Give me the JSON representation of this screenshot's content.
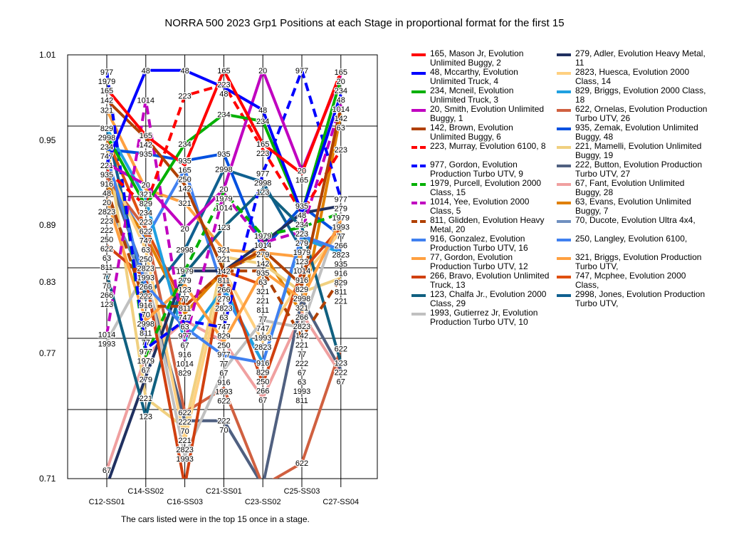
{
  "title": "NORRA 500 2023 Grp1  Positions at each Stage in proportional format for the first 15",
  "footer": "The cars listed were in the top 15 once in a stage.",
  "chart_data": {
    "type": "line",
    "title": "NORRA 500 2023 Grp1  Positions at each Stage in proportional format for the first 15",
    "xlabel": "",
    "ylabel": "",
    "ylim": [
      0.71,
      1.01
    ],
    "yticks": [
      "1.01",
      "0.95",
      "0.89",
      "0.83",
      "0.77",
      "0.71"
    ],
    "categories": [
      "C12-SS01",
      "C14-SS02",
      "C16-SS03",
      "C21-SS01",
      "C23-SS02",
      "C25-SS03",
      "C27-SS04"
    ],
    "grid": true,
    "legend_placement": "right",
    "series": [
      {
        "car": "165",
        "name": "165, Mason Jr, Evolution Unlimited Buggy, 2",
        "color": "#ff0000",
        "dash": false,
        "values": [
          0.986,
          0.953,
          0.932,
          0.999,
          0.947,
          0.926,
          0.998
        ]
      },
      {
        "car": "48",
        "name": "48, Mccarthy, Evolution Unlimited Truck, 4",
        "color": "#0000ff",
        "dash": false,
        "values": [
          0.933,
          0.999,
          0.999,
          0.987,
          0.971,
          0.898,
          0.982
        ]
      },
      {
        "car": "234",
        "name": "234, Mcneil, Evolution Unlimited Truck, 3",
        "color": "#00b000",
        "dash": false,
        "values": [
          0.953,
          0.903,
          0.947,
          0.968,
          0.963,
          0.898,
          0.993
        ]
      },
      {
        "car": "20",
        "name": "20, Smith, Evolution Unlimited Buggy, 1",
        "color": "#c000c0",
        "dash": false,
        "values": [
          0.933,
          0.918,
          0.887,
          0.915,
          0.999,
          0.928,
          0.996
        ]
      },
      {
        "car": "142",
        "name": "142, Brown, Evolution Unlimited Buggy, 6",
        "color": "#b04000",
        "dash": false,
        "values": [
          0.978,
          0.951,
          0.918,
          0.857,
          0.872,
          0.847,
          0.973
        ]
      },
      {
        "car": "223",
        "name": "223, Murray, Evolution 6100, 8",
        "color": "#ff0000",
        "dash": true,
        "values": [
          0.928,
          0.903,
          0.981,
          0.989,
          0.943,
          0.898,
          0.943
        ]
      },
      {
        "car": "977",
        "name": "977, Gordon, Evolution Production Turbo UTV, 9",
        "color": "#0000ff",
        "dash": true,
        "values": [
          0.998,
          0.802,
          0.822,
          0.817,
          0.926,
          0.999,
          0.908
        ]
      },
      {
        "car": "1979",
        "name": "1979, Purcell, Evolution 2000 Class, 15",
        "color": "#00b000",
        "dash": true,
        "values": [
          0.998,
          0.797,
          0.857,
          0.913,
          0.882,
          0.888,
          0.898
        ]
      },
      {
        "car": "1014",
        "name": "1014, Yee, Evolution 2000 Class, 5",
        "color": "#c000c0",
        "dash": true,
        "values": [
          0.812,
          0.978,
          0.807,
          0.912,
          0.877,
          0.885,
          0.975
        ]
      },
      {
        "car": "811",
        "name": "811, Glidden, Evolution Heavy Metal, 20",
        "color": "#b04000",
        "dash": true,
        "values": [
          0.915,
          0.832,
          0.832,
          0.857,
          0.857,
          0.81,
          0.852
        ]
      },
      {
        "car": "916",
        "name": "916, Gonzalez, Evolution Production Turbo UTV, 16",
        "color": "#4080f0",
        "dash": false,
        "values": [
          0.938,
          0.847,
          0.817,
          0.797,
          0.792,
          0.882,
          0.872
        ]
      },
      {
        "car": "77",
        "name": "77, Gordon, Evolution Production Turbo UTV, 12",
        "color": "#ffa040",
        "dash": false,
        "values": [
          0.908,
          0.822,
          0.847,
          0.807,
          0.857,
          0.837,
          0.893
        ]
      },
      {
        "car": "266",
        "name": "266, Bravo, Evolution Unlimited Truck, 13",
        "color": "#d04010",
        "dash": false,
        "values": [
          0.875,
          0.852,
          0.705,
          0.857,
          0.777,
          0.857,
          0.888
        ]
      },
      {
        "car": "123",
        "name": "123, Chalfa Jr., Evolution 2000 Class, 29",
        "color": "#106080",
        "dash": false,
        "values": [
          0.855,
          0.754,
          0.855,
          0.888,
          0.915,
          0.888,
          0.792
        ]
      },
      {
        "car": "1993",
        "name": "1993, Gutierrez Jr, Evolution Production Turbo UTV, 10",
        "color": "#c0c0c0",
        "dash": false,
        "values": [
          0.807,
          0.857,
          0.726,
          0.787,
          0.822,
          0.817,
          0.898
        ]
      },
      {
        "car": "279",
        "name": "279, Adler, Evolution Heavy Metal, 11",
        "color": "#203060",
        "dash": false,
        "values": [
          0.705,
          0.782,
          0.857,
          0.857,
          0.877,
          0.898,
          0.903
        ]
      },
      {
        "car": "2823",
        "name": "2823, Huesca, Evolution 2000 Class, 14",
        "color": "#ffd080",
        "dash": false,
        "values": [
          0.933,
          0.872,
          0.737,
          0.857,
          0.807,
          0.852,
          0.885
        ]
      },
      {
        "car": "829",
        "name": "829, Briggs, Evolution 2000 Class, 18",
        "color": "#20a0e0",
        "dash": false,
        "values": [
          0.958,
          0.908,
          0.807,
          0.845,
          0.792,
          0.88,
          0.87
        ]
      },
      {
        "car": "622",
        "name": "622, Ornelas, Evolution Production Turbo UTV, 26",
        "color": "#d06040",
        "dash": false,
        "values": [
          0.923,
          0.887,
          0.757,
          0.774,
          0.705,
          0.721,
          0.802
        ]
      },
      {
        "car": "935",
        "name": "935, Zemak, Evolution Unlimited Buggy, 48",
        "color": "#0050e0",
        "dash": false,
        "values": [
          0.943,
          0.94,
          0.935,
          0.94,
          0.872,
          0.903,
          0.882
        ]
      },
      {
        "car": "221",
        "name": "221, Mamelli, Evolution Unlimited Buggy, 19",
        "color": "#f0d080",
        "dash": false,
        "values": [
          0.948,
          0.767,
          0.746,
          0.867,
          0.862,
          0.842,
          0.852
        ]
      },
      {
        "car": "222",
        "name": "222, Button, Evolution Production Turbo UTV, 27",
        "color": "#506080",
        "dash": false,
        "values": [
          0.928,
          0.852,
          0.751,
          0.751,
          0.705,
          0.837,
          0.787
        ]
      },
      {
        "car": "67",
        "name": "67, Fant, Evolution Unlimited Buggy, 28",
        "color": "#f0a0a0",
        "dash": false,
        "values": [
          0.716,
          0.797,
          0.822,
          0.807,
          0.767,
          0.827,
          0.784
        ]
      },
      {
        "car": "63",
        "name": "63, Evans, Evolution Unlimited Buggy, 7",
        "color": "#e08000",
        "dash": false,
        "values": [
          0.918,
          0.882,
          0.827,
          0.857,
          0.87,
          0.827,
          0.968
        ]
      },
      {
        "car": "70",
        "name": "70, Ducote, Evolution Ultra 4x4,",
        "color": "#7090c0",
        "dash": false,
        "values": [
          0.908,
          0.847,
          0.751,
          0.751,
          0.705,
          null,
          null
        ]
      },
      {
        "car": "250",
        "name": "250, Langley, Evolution 6100,",
        "color": "#4080f0",
        "dash": false,
        "values": [
          0.925,
          0.88,
          0.929,
          0.842,
          0.792,
          null,
          null
        ]
      },
      {
        "car": "321",
        "name": "321, Briggs, Evolution Production Turbo UTV,",
        "color": "#ffa040",
        "dash": false,
        "values": [
          0.971,
          0.915,
          0.905,
          0.872,
          0.87,
          0.867,
          null
        ]
      },
      {
        "car": "747",
        "name": "747, Mcphee, Evolution 2000 Class,",
        "color": "#e05010",
        "dash": false,
        "values": [
          0.951,
          0.887,
          0.832,
          0.857,
          0.847,
          null,
          null
        ]
      },
      {
        "car": "2998",
        "name": "2998, Jones, Evolution Production Turbo UTV,",
        "color": "#106090",
        "dash": false,
        "values": [
          0.958,
          0.837,
          0.872,
          0.929,
          0.92,
          0.872,
          null
        ]
      }
    ]
  }
}
